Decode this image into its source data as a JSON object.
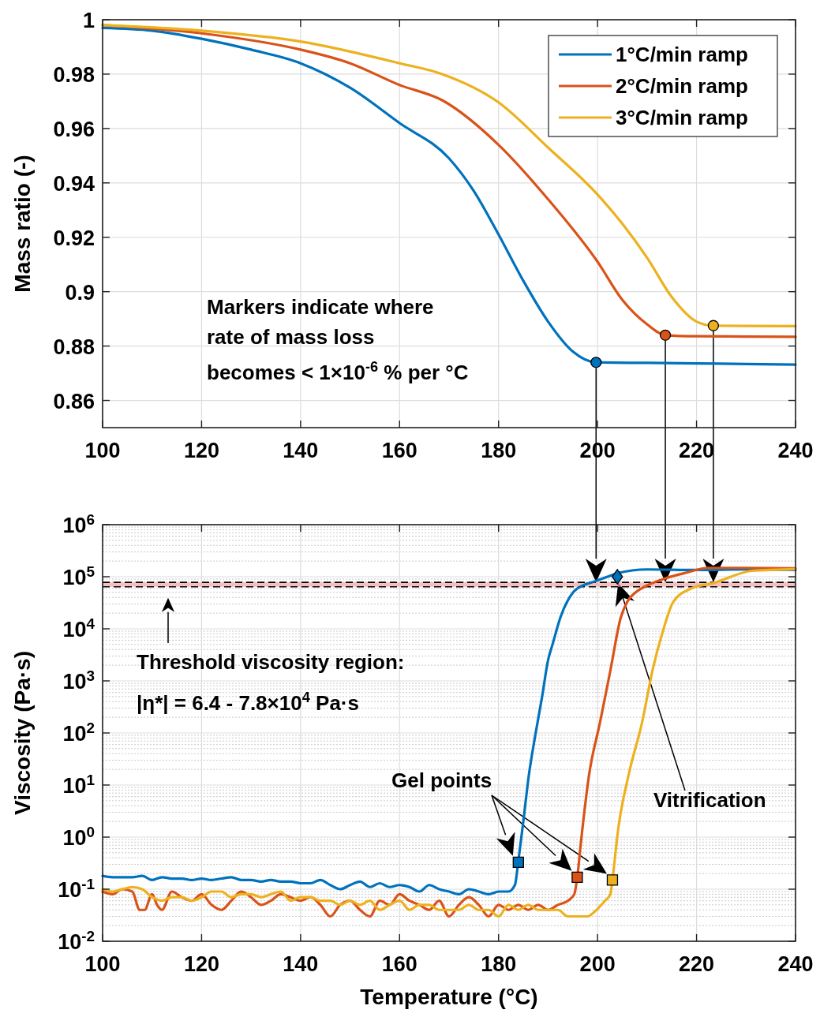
{
  "chart_data": [
    {
      "type": "line",
      "ylabel": "Mass ratio (-)",
      "xlim": [
        100,
        240
      ],
      "xticks": [
        100,
        120,
        140,
        160,
        180,
        200,
        220,
        240
      ],
      "ylim": [
        0.85,
        1
      ],
      "yticks": [
        0.86,
        0.88,
        0.9,
        0.92,
        0.94,
        0.96,
        0.98,
        1
      ],
      "grid": true,
      "legend": "top right",
      "annotations": [
        "Markers indicate where",
        "rate of mass loss",
        "becomes < 1×10$^{-6}$ % per °C"
      ],
      "series": [
        {
          "name": "1°C/min ramp",
          "color": "#0072bd",
          "x": [
            100,
            110,
            120,
            130,
            140,
            150,
            160,
            170,
            175,
            180,
            185,
            190,
            195,
            199.7,
            210,
            220,
            230,
            240
          ],
          "values": [
            0.997,
            0.996,
            0.993,
            0.989,
            0.984,
            0.975,
            0.962,
            0.949,
            0.937,
            0.921,
            0.904,
            0.889,
            0.878,
            0.874,
            0.8738,
            0.8736,
            0.8734,
            0.8732
          ]
        },
        {
          "name": "2°C/min ramp",
          "color": "#d95319",
          "x": [
            100,
            120,
            140,
            150,
            160,
            168.6,
            180,
            190,
            200,
            205,
            210,
            213.7,
            220,
            230,
            240
          ],
          "values": [
            0.998,
            0.995,
            0.989,
            0.984,
            0.976,
            0.9704,
            0.954,
            0.934,
            0.911,
            0.897,
            0.888,
            0.884,
            0.8836,
            0.8835,
            0.8834
          ]
        },
        {
          "name": "3°C/min ramp",
          "color": "#edb120",
          "x": [
            100,
            120,
            140,
            160,
            168.6,
            180,
            190,
            200,
            205,
            210,
            215,
            220,
            223.4,
            230,
            240
          ],
          "values": [
            0.998,
            0.996,
            0.992,
            0.984,
            0.98,
            0.9696,
            0.953,
            0.9357,
            0.925,
            0.9125,
            0.898,
            0.889,
            0.8875,
            0.8874,
            0.8873
          ]
        },
        {
          "type": "scatter",
          "marker": "circle",
          "x": [
            199.7,
            213.7,
            223.4
          ],
          "values": [
            0.874,
            0.884,
            0.8875
          ],
          "colors": [
            "#0072bd",
            "#d95319",
            "#edb120"
          ]
        }
      ]
    },
    {
      "type": "line",
      "xlabel": "Temperature (°C)",
      "ylabel": "Viscosity (Pa·s)",
      "log": "y",
      "xlim": [
        100,
        240
      ],
      "xticks": [
        100,
        120,
        140,
        160,
        180,
        200,
        220,
        240
      ],
      "ylim": [
        0.01,
        1000000
      ],
      "yticks": [
        {
          "value": 0.01,
          "label": "10$^{-2}$"
        },
        {
          "value": 0.1,
          "label": "10$^{-1}$"
        },
        {
          "value": 1,
          "label": "10$^{0}$"
        },
        {
          "value": 10,
          "label": "10$^{1}$"
        },
        {
          "value": 100,
          "label": "10$^{2}$"
        },
        {
          "value": 1000,
          "label": "10$^{3}$"
        },
        {
          "value": 10000,
          "label": "10$^{4}$"
        },
        {
          "value": 100000,
          "label": "10$^{5}$"
        },
        {
          "value": 1000000,
          "label": "10$^{6}$"
        }
      ],
      "grid": true,
      "bands": [
        {
          "axis": "y",
          "from": 64000,
          "to": 78000,
          "color": "#f4a6a6"
        }
      ],
      "ref_lines": [
        {
          "axis": "y",
          "value": 64000,
          "color": "#000000",
          "line_style": "dashed"
        },
        {
          "axis": "y",
          "value": 78000,
          "color": "#000000",
          "line_style": "dashed"
        }
      ],
      "annotations": [
        "Threshold viscosity region:",
        "|η*| = 6.4 - 7.8×10$^{4}$ Pa·s",
        "Gel points",
        {
          "text": "Vitrification",
          "x": 204,
          "y": 100000
        }
      ],
      "series": [
        {
          "color": "#0072bd",
          "x": [
            100,
            102,
            104,
            106,
            108,
            110,
            112,
            114,
            116,
            118,
            120,
            122,
            124,
            126,
            128,
            130,
            132,
            134,
            136,
            138,
            140,
            142,
            144,
            146,
            148,
            150,
            152,
            154,
            156,
            158,
            160,
            162,
            164,
            166,
            168,
            170,
            172,
            174,
            176,
            178,
            180,
            182,
            183.3,
            184,
            185,
            186.1,
            187.5,
            188.8,
            190,
            190.9,
            192.5,
            195.2,
            197,
            199.4,
            202,
            204,
            210,
            220,
            230,
            240
          ],
          "values": [
            0.18,
            0.17,
            0.17,
            0.17,
            0.18,
            0.15,
            0.17,
            0.16,
            0.16,
            0.15,
            0.16,
            0.15,
            0.16,
            0.17,
            0.15,
            0.15,
            0.14,
            0.15,
            0.14,
            0.14,
            0.13,
            0.13,
            0.15,
            0.12,
            0.1,
            0.12,
            0.14,
            0.11,
            0.13,
            0.11,
            0.12,
            0.11,
            0.09,
            0.12,
            0.1,
            0.09,
            0.08,
            0.1,
            0.09,
            0.08,
            0.09,
            0.09,
            0.12,
            0.35,
            2,
            15,
            100,
            500,
            2500,
            5000,
            16600,
            52000,
            68000,
            81000,
            100000,
            117000,
            138000,
            135000,
            138000,
            135000
          ]
        },
        {
          "color": "#d95319",
          "x": [
            100,
            102,
            104,
            106,
            107.5,
            108.5,
            110,
            111,
            112,
            114,
            116,
            118,
            120,
            122,
            124,
            126,
            128,
            130,
            132,
            134,
            136,
            138,
            140,
            142,
            144,
            146,
            148,
            150,
            152,
            154,
            156,
            158,
            160,
            162,
            164,
            166,
            168,
            170,
            172,
            174,
            176,
            178,
            180,
            182,
            184,
            186,
            188,
            190,
            192,
            194,
            195.3,
            195.9,
            196.7,
            198.3,
            200.5,
            202.6,
            204.7,
            206,
            207.9,
            210,
            213.7,
            218,
            222.3,
            230,
            240
          ],
          "values": [
            0.09,
            0.08,
            0.1,
            0.09,
            0.04,
            0.04,
            0.08,
            0.05,
            0.04,
            0.09,
            0.07,
            0.06,
            0.08,
            0.05,
            0.04,
            0.06,
            0.09,
            0.07,
            0.05,
            0.06,
            0.08,
            0.07,
            0.06,
            0.07,
            0.05,
            0.03,
            0.05,
            0.06,
            0.04,
            0.03,
            0.06,
            0.05,
            0.08,
            0.06,
            0.05,
            0.04,
            0.06,
            0.03,
            0.05,
            0.07,
            0.05,
            0.03,
            0.05,
            0.04,
            0.05,
            0.04,
            0.05,
            0.04,
            0.05,
            0.06,
            0.08,
            0.17,
            0.9,
            16,
            160,
            1600,
            16600,
            33000,
            52000,
            68000,
            93000,
            120000,
            148000,
            148000,
            145000
          ]
        },
        {
          "color": "#edb120",
          "x": [
            100,
            102,
            104,
            106,
            108,
            110,
            112,
            114,
            116,
            118,
            120,
            122,
            124,
            126,
            128,
            130,
            132,
            134,
            136,
            138,
            140,
            142,
            144,
            146,
            148,
            150,
            152,
            154,
            156,
            158,
            160,
            162,
            164,
            166,
            168,
            170,
            172,
            174,
            176,
            178,
            180,
            182,
            184,
            186,
            188,
            190,
            192,
            194,
            196,
            198,
            199.4,
            201.5,
            202.6,
            203,
            204.2,
            206.3,
            209,
            211.1,
            213.2,
            215.3,
            219,
            223.3,
            231.2,
            240
          ],
          "values": [
            0.1,
            0.09,
            0.1,
            0.11,
            0.1,
            0.07,
            0.06,
            0.07,
            0.07,
            0.06,
            0.07,
            0.09,
            0.09,
            0.07,
            0.08,
            0.08,
            0.07,
            0.08,
            0.09,
            0.06,
            0.07,
            0.07,
            0.06,
            0.06,
            0.05,
            0.06,
            0.05,
            0.06,
            0.04,
            0.05,
            0.06,
            0.04,
            0.05,
            0.05,
            0.04,
            0.04,
            0.04,
            0.05,
            0.04,
            0.04,
            0.03,
            0.05,
            0.04,
            0.05,
            0.04,
            0.04,
            0.04,
            0.03,
            0.03,
            0.03,
            0.037,
            0.06,
            0.08,
            0.15,
            1.5,
            16,
            160,
            1600,
            9000,
            33000,
            60000,
            75000,
            130000,
            140000
          ]
        },
        {
          "type": "scatter",
          "marker": "square",
          "x": [
            184,
            195.9,
            203
          ],
          "values": [
            0.33,
            0.17,
            0.15
          ],
          "colors": [
            "#0072bd",
            "#d95319",
            "#edb120"
          ]
        },
        {
          "type": "scatter",
          "marker": "diamond",
          "x": [
            204
          ],
          "values": [
            100000
          ],
          "colors": [
            "#0072bd"
          ]
        }
      ]
    }
  ]
}
